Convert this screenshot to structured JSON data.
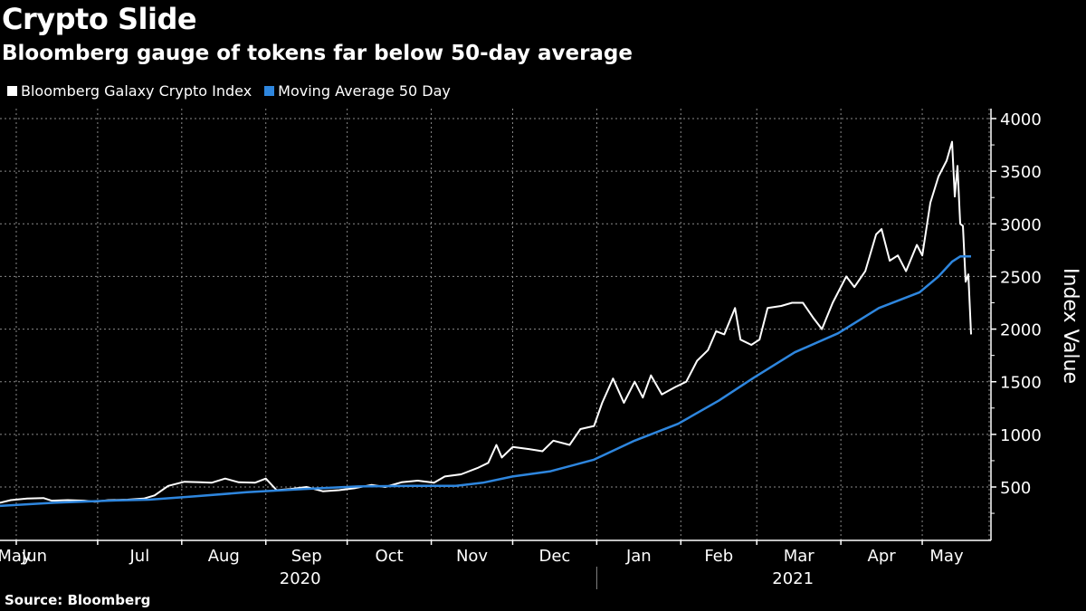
{
  "header": {
    "title": "Crypto Slide",
    "subtitle": "Bloomberg gauge of tokens far below 50-day average"
  },
  "footer": {
    "source": "Source: Bloomberg"
  },
  "colors": {
    "index": "#ffffff",
    "moving_average": "#2e86de",
    "background": "#000000",
    "grid": "#8a8a8a"
  },
  "chart_data": {
    "type": "line",
    "title": "Crypto Slide",
    "subtitle": "Bloomberg gauge of tokens far below 50-day average",
    "xlabel": "",
    "ylabel": "Index Value",
    "ylim": [
      0,
      4000
    ],
    "yticks": [
      500,
      1000,
      1500,
      2000,
      2500,
      3000,
      3500,
      4000
    ],
    "ytick_labels": [
      "500",
      "1000",
      "1500",
      "2000",
      "2500",
      "3000",
      "3500",
      "4000"
    ],
    "xtick_labels": [
      "May",
      "Jun",
      "Jul",
      "Aug",
      "Sep",
      "Oct",
      "Nov",
      "Dec",
      "Jan",
      "Feb",
      "Mar",
      "Apr",
      "May"
    ],
    "year_labels": [
      "2020",
      "2021"
    ],
    "grid": true,
    "legend": "top-left",
    "x_range": [
      "2020-05-26",
      "2021-05-19"
    ],
    "series": [
      {
        "name": "Bloomberg Galaxy Crypto Index",
        "color": "#ffffff",
        "points": [
          [
            "2020-05-26",
            350
          ],
          [
            "2020-05-30",
            375
          ],
          [
            "2020-06-05",
            390
          ],
          [
            "2020-06-11",
            395
          ],
          [
            "2020-06-14",
            370
          ],
          [
            "2020-06-20",
            375
          ],
          [
            "2020-06-26",
            370
          ],
          [
            "2020-06-30",
            360
          ],
          [
            "2020-07-05",
            375
          ],
          [
            "2020-07-12",
            380
          ],
          [
            "2020-07-18",
            390
          ],
          [
            "2020-07-22",
            420
          ],
          [
            "2020-07-27",
            510
          ],
          [
            "2020-08-02",
            550
          ],
          [
            "2020-08-08",
            545
          ],
          [
            "2020-08-12",
            540
          ],
          [
            "2020-08-17",
            580
          ],
          [
            "2020-08-22",
            545
          ],
          [
            "2020-08-28",
            540
          ],
          [
            "2020-09-01",
            580
          ],
          [
            "2020-09-05",
            470
          ],
          [
            "2020-09-10",
            480
          ],
          [
            "2020-09-16",
            500
          ],
          [
            "2020-09-22",
            460
          ],
          [
            "2020-09-28",
            470
          ],
          [
            "2020-10-04",
            490
          ],
          [
            "2020-10-10",
            520
          ],
          [
            "2020-10-15",
            500
          ],
          [
            "2020-10-21",
            545
          ],
          [
            "2020-10-27",
            560
          ],
          [
            "2020-11-02",
            540
          ],
          [
            "2020-11-06",
            600
          ],
          [
            "2020-11-12",
            620
          ],
          [
            "2020-11-18",
            680
          ],
          [
            "2020-11-22",
            730
          ],
          [
            "2020-11-25",
            900
          ],
          [
            "2020-11-27",
            780
          ],
          [
            "2020-12-01",
            880
          ],
          [
            "2020-12-07",
            860
          ],
          [
            "2020-12-12",
            840
          ],
          [
            "2020-12-16",
            940
          ],
          [
            "2020-12-22",
            900
          ],
          [
            "2020-12-26",
            1050
          ],
          [
            "2020-12-31",
            1080
          ],
          [
            "2021-01-03",
            1300
          ],
          [
            "2021-01-07",
            1530
          ],
          [
            "2021-01-11",
            1300
          ],
          [
            "2021-01-15",
            1500
          ],
          [
            "2021-01-18",
            1350
          ],
          [
            "2021-01-21",
            1560
          ],
          [
            "2021-01-25",
            1380
          ],
          [
            "2021-01-30",
            1450
          ],
          [
            "2021-02-03",
            1500
          ],
          [
            "2021-02-07",
            1700
          ],
          [
            "2021-02-11",
            1800
          ],
          [
            "2021-02-14",
            1980
          ],
          [
            "2021-02-17",
            1950
          ],
          [
            "2021-02-21",
            2200
          ],
          [
            "2021-02-23",
            1900
          ],
          [
            "2021-02-27",
            1850
          ],
          [
            "2021-03-02",
            1900
          ],
          [
            "2021-03-05",
            2200
          ],
          [
            "2021-03-10",
            2220
          ],
          [
            "2021-03-14",
            2250
          ],
          [
            "2021-03-18",
            2250
          ],
          [
            "2021-03-22",
            2100
          ],
          [
            "2021-03-25",
            2000
          ],
          [
            "2021-03-29",
            2250
          ],
          [
            "2021-04-03",
            2500
          ],
          [
            "2021-04-06",
            2400
          ],
          [
            "2021-04-10",
            2550
          ],
          [
            "2021-04-14",
            2900
          ],
          [
            "2021-04-16",
            2950
          ],
          [
            "2021-04-19",
            2650
          ],
          [
            "2021-04-22",
            2700
          ],
          [
            "2021-04-25",
            2550
          ],
          [
            "2021-04-29",
            2800
          ],
          [
            "2021-05-01",
            2700
          ],
          [
            "2021-05-04",
            3200
          ],
          [
            "2021-05-07",
            3450
          ],
          [
            "2021-05-10",
            3600
          ],
          [
            "2021-05-12",
            3780
          ],
          [
            "2021-05-13",
            3260
          ],
          [
            "2021-05-14",
            3550
          ],
          [
            "2021-05-15",
            3000
          ],
          [
            "2021-05-16",
            2980
          ],
          [
            "2021-05-17",
            2450
          ],
          [
            "2021-05-18",
            2520
          ],
          [
            "2021-05-19",
            1950
          ]
        ]
      },
      {
        "name": "Moving Average 50 Day",
        "color": "#2e86de",
        "points": [
          [
            "2020-05-26",
            320
          ],
          [
            "2020-06-15",
            350
          ],
          [
            "2020-07-05",
            370
          ],
          [
            "2020-07-20",
            380
          ],
          [
            "2020-08-05",
            410
          ],
          [
            "2020-08-25",
            450
          ],
          [
            "2020-09-15",
            480
          ],
          [
            "2020-10-05",
            505
          ],
          [
            "2020-10-25",
            510
          ],
          [
            "2020-11-10",
            510
          ],
          [
            "2020-11-20",
            540
          ],
          [
            "2020-12-01",
            600
          ],
          [
            "2020-12-15",
            650
          ],
          [
            "2020-12-31",
            760
          ],
          [
            "2021-01-15",
            940
          ],
          [
            "2021-01-31",
            1100
          ],
          [
            "2021-02-15",
            1320
          ],
          [
            "2021-02-28",
            1540
          ],
          [
            "2021-03-15",
            1780
          ],
          [
            "2021-03-31",
            1960
          ],
          [
            "2021-04-15",
            2200
          ],
          [
            "2021-04-30",
            2350
          ],
          [
            "2021-05-07",
            2500
          ],
          [
            "2021-05-12",
            2640
          ],
          [
            "2021-05-15",
            2690
          ],
          [
            "2021-05-19",
            2690
          ]
        ]
      }
    ]
  }
}
